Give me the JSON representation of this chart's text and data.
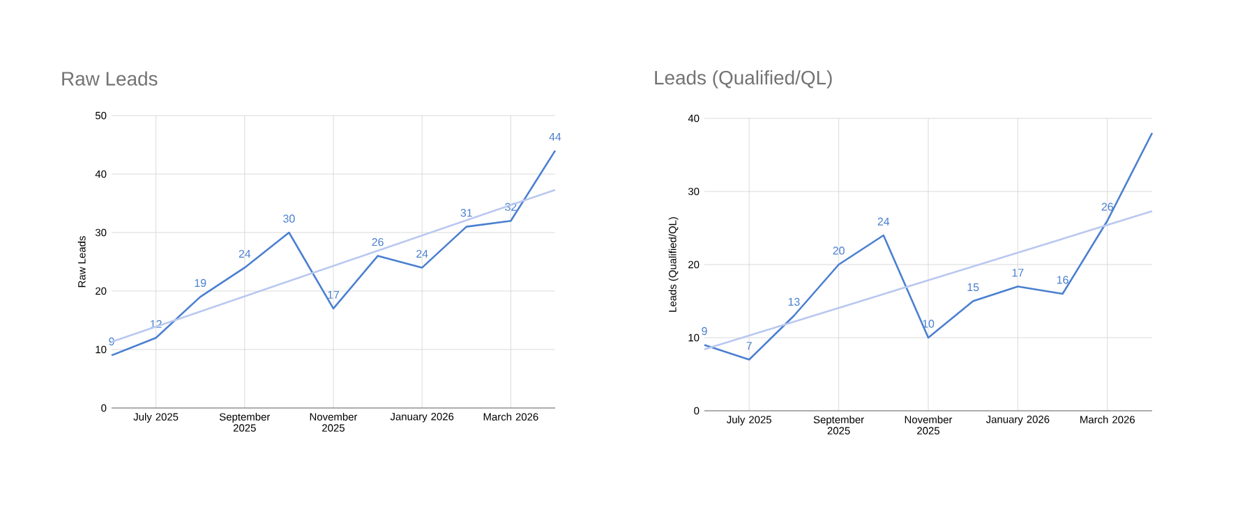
{
  "chart_data": [
    {
      "type": "line",
      "title": "Raw Leads",
      "ylabel": "Raw Leads",
      "x": [
        "2025-06",
        "2025-07",
        "2025-08",
        "2025-09",
        "2025-10",
        "2025-11",
        "2025-12",
        "2026-01",
        "2026-02",
        "2026-03",
        "2026-04"
      ],
      "xlim": [
        "2025-06",
        "2026-04"
      ],
      "xticks": [
        {
          "value": "2025-07",
          "label": "July 2025"
        },
        {
          "value": "2025-09",
          "label": "September 2025"
        },
        {
          "value": "2025-11",
          "label": "November 2025"
        },
        {
          "value": "2026-01",
          "label": "January 2026"
        },
        {
          "value": "2026-03",
          "label": "March 2026"
        }
      ],
      "ylim": [
        0,
        50
      ],
      "yticks": [
        0,
        10,
        20,
        30,
        40,
        50
      ],
      "grid": true,
      "series": [
        {
          "color": "#4a7fd0",
          "values": [
            9,
            12,
            19,
            24,
            30,
            17,
            26,
            24,
            31,
            32,
            44
          ],
          "value_labels": [
            "9",
            "12",
            "19",
            "24",
            "30",
            "17",
            "26",
            "24",
            "31",
            "32",
            "44"
          ]
        },
        {
          "type": "line",
          "color": "#b9c8f0",
          "x": [
            "2025-06",
            "2026-04"
          ],
          "values": [
            11.3,
            37.3
          ]
        }
      ]
    },
    {
      "type": "line",
      "title": "Leads (Qualified/QL)",
      "ylabel": "Leads (Qualified/QL)",
      "x": [
        "2025-06",
        "2025-07",
        "2025-08",
        "2025-09",
        "2025-10",
        "2025-11",
        "2025-12",
        "2026-01",
        "2026-02",
        "2026-03",
        "2026-04"
      ],
      "xlim": [
        "2025-06",
        "2026-04"
      ],
      "xticks": [
        {
          "value": "2025-07",
          "label": "July 2025"
        },
        {
          "value": "2025-09",
          "label": "September 2025"
        },
        {
          "value": "2025-11",
          "label": "November 2025"
        },
        {
          "value": "2026-01",
          "label": "January 2026"
        },
        {
          "value": "2026-03",
          "label": "March 2026"
        }
      ],
      "ylim": [
        0,
        40
      ],
      "yticks": [
        0,
        10,
        20,
        30,
        40
      ],
      "grid": true,
      "series": [
        {
          "color": "#4a7fd0",
          "values": [
            9,
            7,
            13,
            20,
            24,
            10,
            15,
            17,
            16,
            26,
            38
          ],
          "value_labels": [
            "9",
            "7",
            "13",
            "20",
            "24",
            "10",
            "15",
            "17",
            "16",
            "26",
            null
          ]
        },
        {
          "type": "line",
          "color": "#b9c8f0",
          "x": [
            "2025-06",
            "2026-04"
          ],
          "values": [
            8.4,
            27.3
          ]
        }
      ]
    }
  ]
}
